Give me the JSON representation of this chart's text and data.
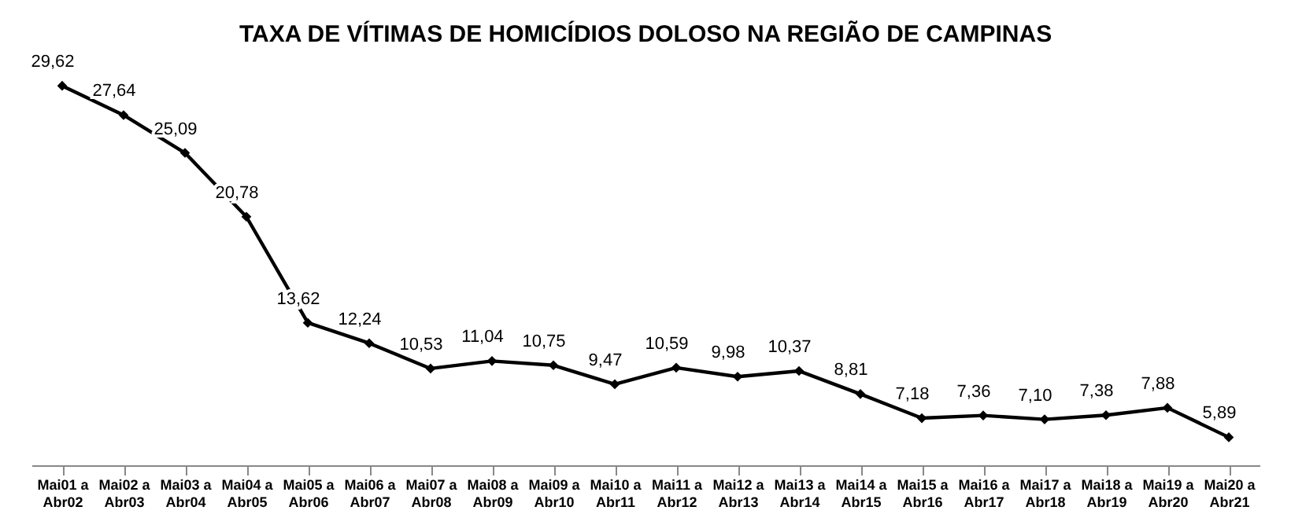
{
  "chart_data": {
    "type": "line",
    "title": "TAXA DE VÍTIMAS DE HOMICÍDIOS DOLOSO NA REGIÃO DE CAMPINAS",
    "categories": [
      "Mai01 a Abr02",
      "Mai02 a Abr03",
      "Mai03 a Abr04",
      "Mai04 a Abr05",
      "Mai05 a Abr06",
      "Mai06 a Abr07",
      "Mai07 a Abr08",
      "Mai08 a Abr09",
      "Mai09 a Abr10",
      "Mai10 a Abr11",
      "Mai11 a Abr12",
      "Mai12 a Abr13",
      "Mai13 a Abr14",
      "Mai14 a Abr15",
      "Mai15 a Abr16",
      "Mai16 a Abr17",
      "Mai17 a Abr18",
      "Mai18 a Abr19",
      "Mai19 a Abr20",
      "Mai20 a Abr21"
    ],
    "series": [
      {
        "color": "#000000",
        "values": [
          29.62,
          27.64,
          25.09,
          20.78,
          13.62,
          12.24,
          10.53,
          11.04,
          10.75,
          9.47,
          10.59,
          9.98,
          10.37,
          8.81,
          7.18,
          7.36,
          7.1,
          7.38,
          7.88,
          5.89
        ],
        "value_labels": [
          "29,62",
          "27,64",
          "25,09",
          "20,78",
          "13,62",
          "12,24",
          "10,53",
          "11,04",
          "10,75",
          "9,47",
          "10,59",
          "9,98",
          "10,37",
          "8,81",
          "7,18",
          "7,36",
          "7,10",
          "7,38",
          "7,88",
          "5,89"
        ]
      }
    ],
    "data_labels": true,
    "marker": "diamond",
    "line_style": "solid",
    "grid": false,
    "tick_labels": "x"
  }
}
